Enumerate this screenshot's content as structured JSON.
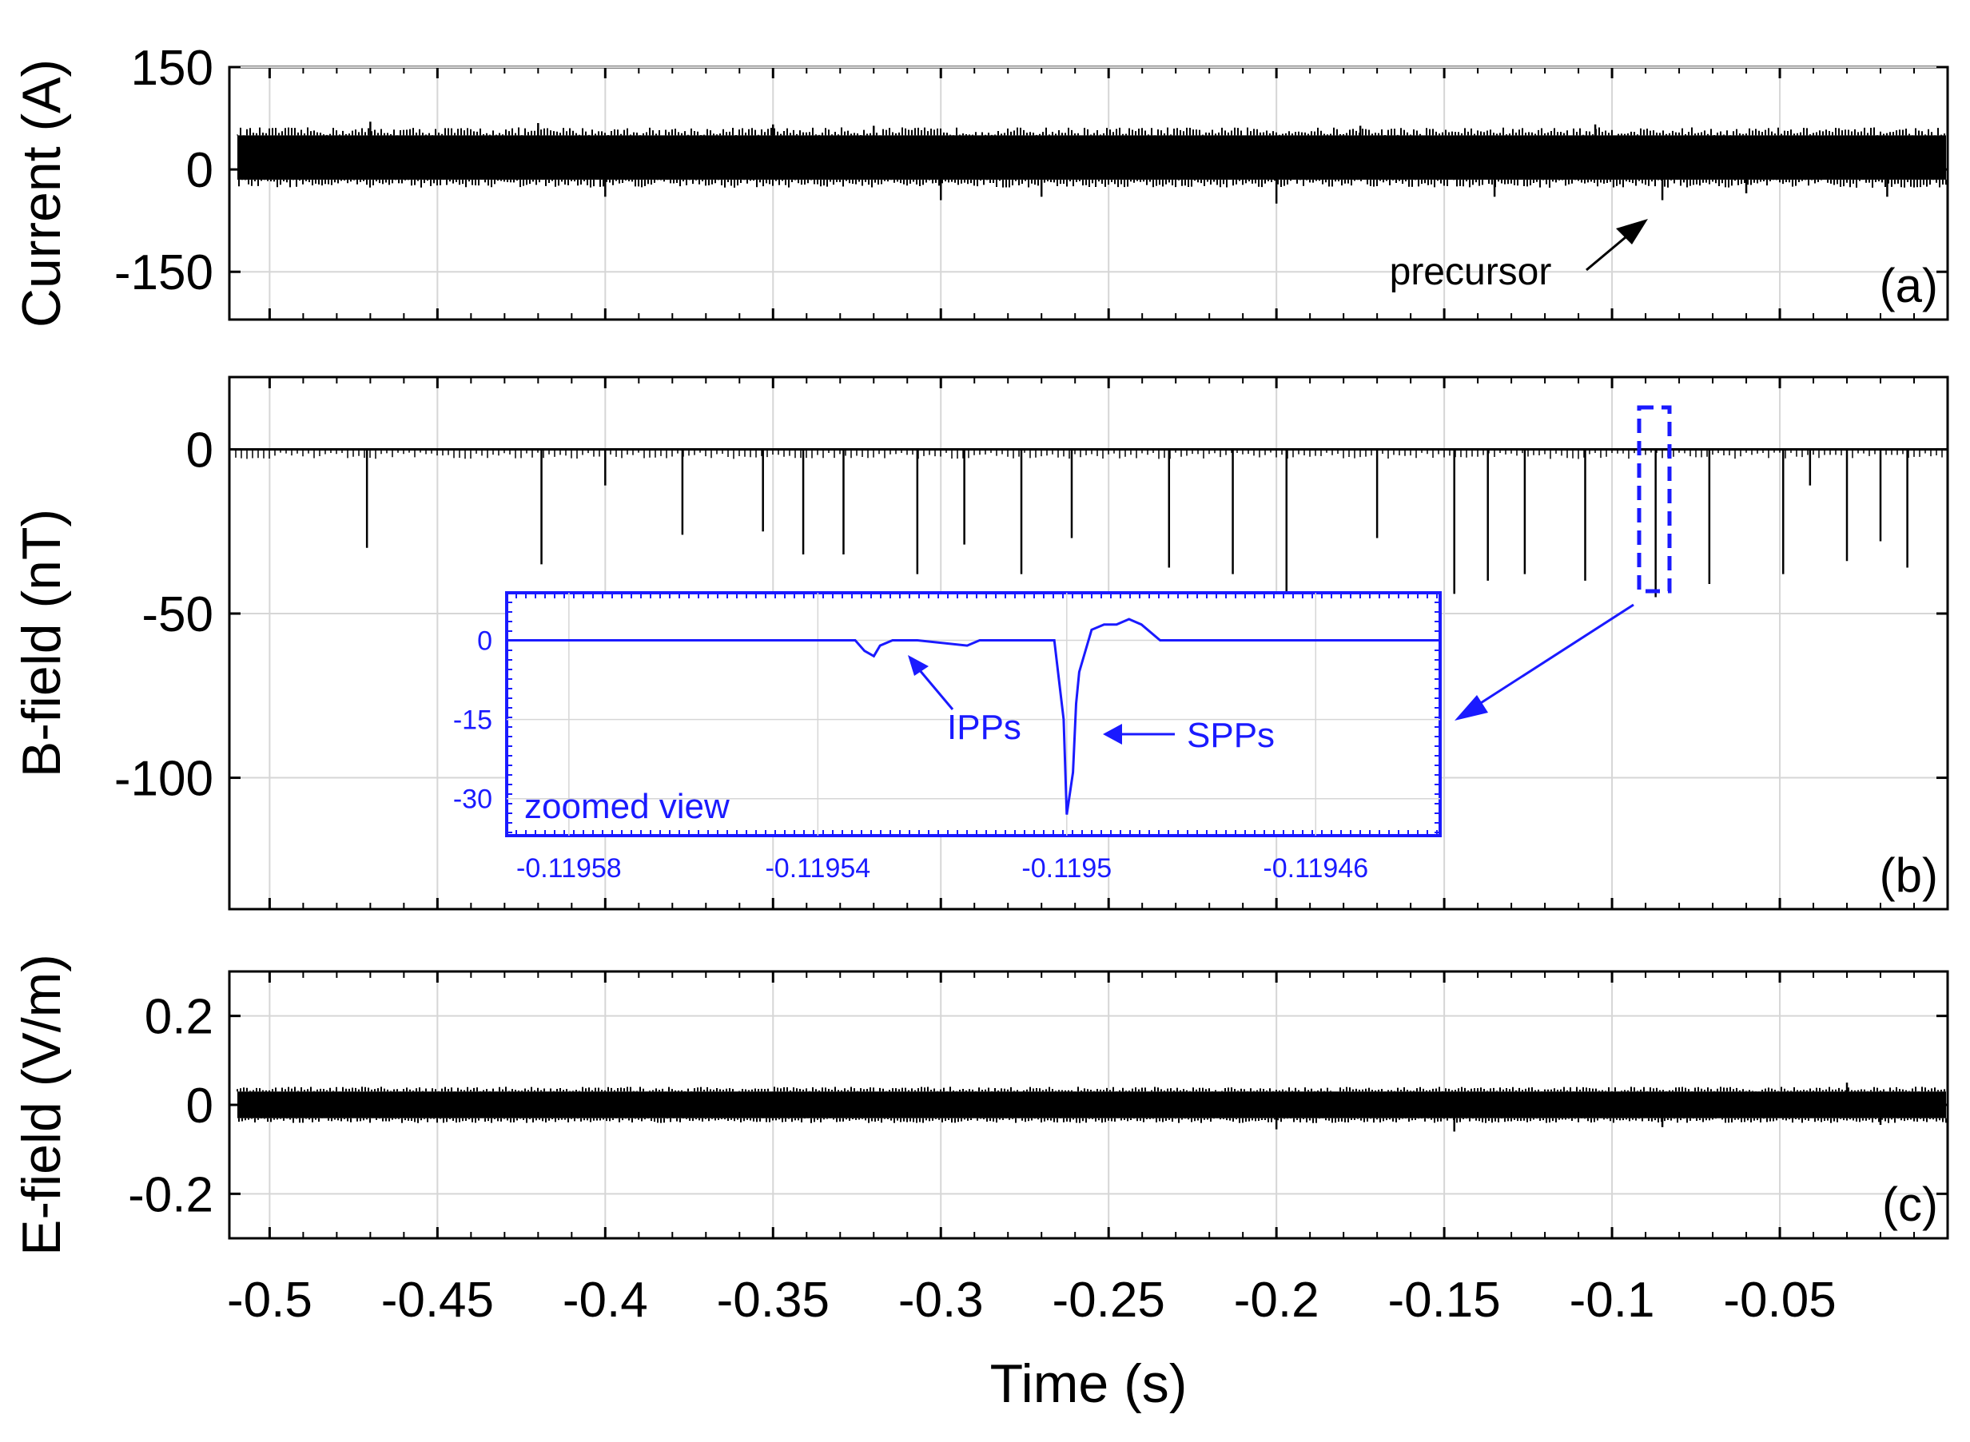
{
  "figure": {
    "xlabel": "Time (s)",
    "x_ticks": [
      -0.5,
      -0.45,
      -0.4,
      -0.35,
      -0.3,
      -0.25,
      -0.2,
      -0.15,
      -0.1,
      -0.05
    ],
    "x_tick_labels": [
      "-0.5",
      "-0.45",
      "-0.4",
      "-0.35",
      "-0.3",
      "-0.25",
      "-0.2",
      "-0.15",
      "-0.1",
      "-0.05"
    ],
    "xlim": [
      -0.512,
      0.0
    ],
    "grid": true,
    "trace_color": "#000000",
    "inset_color": "#1a1aff"
  },
  "chart_data": [
    {
      "type": "line",
      "panel": "(a)",
      "ylabel": "Current (A)",
      "ylim": [
        -220,
        150
      ],
      "y_ticks": [
        150,
        0,
        -150
      ],
      "y_tick_labels": [
        "150",
        "0",
        "-150"
      ],
      "band": {
        "low": -15,
        "high": 50
      },
      "spikes": [
        {
          "x": -0.47,
          "y": 70
        },
        {
          "x": -0.42,
          "y": 68
        },
        {
          "x": -0.4,
          "y": -40
        },
        {
          "x": -0.35,
          "y": 66
        },
        {
          "x": -0.32,
          "y": 64
        },
        {
          "x": -0.3,
          "y": -45
        },
        {
          "x": -0.27,
          "y": -40
        },
        {
          "x": -0.2,
          "y": -50
        },
        {
          "x": -0.175,
          "y": 64
        },
        {
          "x": -0.135,
          "y": -40
        },
        {
          "x": -0.105,
          "y": 66
        },
        {
          "x": -0.085,
          "y": -45
        },
        {
          "x": -0.06,
          "y": -35
        },
        {
          "x": -0.018,
          "y": -40
        }
      ],
      "annotations": [
        {
          "text": "precursor",
          "x": -0.085,
          "y": -45
        }
      ]
    },
    {
      "type": "line",
      "panel": "(b)",
      "ylabel": "B-field (nT)",
      "ylim": [
        -140,
        22
      ],
      "y_ticks": [
        0,
        -50,
        -100
      ],
      "y_tick_labels": [
        "0",
        "-50",
        "-100"
      ],
      "spikes": [
        {
          "x": -0.471,
          "y": -30
        },
        {
          "x": -0.419,
          "y": -35
        },
        {
          "x": -0.4,
          "y": -11
        },
        {
          "x": -0.377,
          "y": -26
        },
        {
          "x": -0.353,
          "y": -25
        },
        {
          "x": -0.341,
          "y": -32
        },
        {
          "x": -0.329,
          "y": -32
        },
        {
          "x": -0.307,
          "y": -38
        },
        {
          "x": -0.293,
          "y": -29
        },
        {
          "x": -0.276,
          "y": -38
        },
        {
          "x": -0.261,
          "y": -27
        },
        {
          "x": -0.232,
          "y": -36
        },
        {
          "x": -0.213,
          "y": -38
        },
        {
          "x": -0.197,
          "y": -44
        },
        {
          "x": -0.17,
          "y": -27
        },
        {
          "x": -0.147,
          "y": -44
        },
        {
          "x": -0.137,
          "y": -40
        },
        {
          "x": -0.126,
          "y": -38
        },
        {
          "x": -0.108,
          "y": -40
        },
        {
          "x": -0.087,
          "y": -45
        },
        {
          "x": -0.071,
          "y": -41
        },
        {
          "x": -0.049,
          "y": -38
        },
        {
          "x": -0.041,
          "y": -11
        },
        {
          "x": -0.03,
          "y": -34
        },
        {
          "x": -0.02,
          "y": -28
        },
        {
          "x": -0.012,
          "y": -36
        }
      ],
      "inset": {
        "title": "zoomed view",
        "xlim": [
          -0.11959,
          -0.11944
        ],
        "ylim": [
          -37,
          9
        ],
        "x_ticks": [
          -0.11958,
          -0.11954,
          -0.1195,
          -0.11946
        ],
        "x_tick_labels": [
          "-0.11958",
          "-0.11954",
          "-0.1195",
          "-0.11946"
        ],
        "y_ticks": [
          0,
          -15,
          -30
        ],
        "y_tick_labels": [
          "0",
          "-15",
          "-30"
        ],
        "x": [
          -0.11959,
          -0.119534,
          -0.1195325,
          -0.119531,
          -0.11953,
          -0.119528,
          -0.119524,
          -0.119516,
          -0.119514,
          -0.11951,
          -0.119502,
          -0.1195005,
          -0.1195,
          -0.119499,
          -0.1194985,
          -0.119498,
          -0.119496,
          -0.119494,
          -0.119492,
          -0.11949,
          -0.119488,
          -0.119485,
          -0.11948,
          -0.119474,
          -0.11947,
          -0.11944
        ],
        "y": [
          0,
          0,
          -2,
          -3,
          -1,
          0,
          0,
          -1,
          0,
          0,
          0,
          -15,
          -33,
          -25,
          -12,
          -6,
          2,
          3,
          3,
          4,
          3,
          0,
          0,
          0,
          0,
          0
        ],
        "annotations": [
          {
            "text": "IPPs",
            "x": -0.119532,
            "y": -2
          },
          {
            "text": "SPPs",
            "x": -0.1195,
            "y": -19
          }
        ]
      }
    },
    {
      "type": "line",
      "panel": "(c)",
      "ylabel": "E-field (V/m)",
      "ylim": [
        -0.3,
        0.3
      ],
      "y_ticks": [
        0.2,
        0,
        -0.2
      ],
      "y_tick_labels": [
        "0.2",
        "0",
        "-0.2"
      ],
      "band": {
        "low": -0.03,
        "high": 0.03
      },
      "spikes": [
        {
          "x": -0.2,
          "y": -0.055
        },
        {
          "x": -0.147,
          "y": -0.06
        },
        {
          "x": -0.085,
          "y": -0.05
        },
        {
          "x": -0.03,
          "y": 0.05
        },
        {
          "x": -0.02,
          "y": -0.045
        }
      ]
    }
  ]
}
